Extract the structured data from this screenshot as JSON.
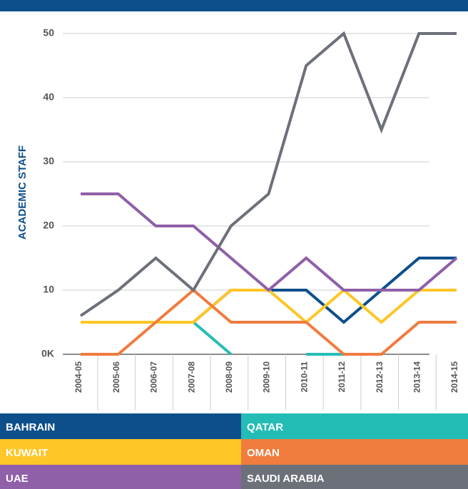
{
  "chart_data": {
    "type": "line",
    "y_label": "ACADEMIC STAFF",
    "categories": [
      "2004-05",
      "2005-06",
      "2006-07",
      "2007-08",
      "2008-09",
      "2009-10",
      "2010-11",
      "2011-12",
      "2012-13",
      "2013-14",
      "2014-15"
    ],
    "series": [
      {
        "name": "BAHRAIN",
        "color": "#0d4f8b",
        "values": [
          5,
          5,
          5,
          5,
          10,
          10,
          10,
          5,
          10,
          15,
          15
        ]
      },
      {
        "name": "QATAR",
        "color": "#24bdb6",
        "values": [
          null,
          null,
          null,
          5,
          0,
          null,
          0,
          0,
          null,
          null,
          null
        ]
      },
      {
        "name": "KUWAIT",
        "color": "#fec627",
        "values": [
          5,
          5,
          5,
          5,
          10,
          10,
          5,
          10,
          5,
          10,
          10
        ]
      },
      {
        "name": "OMAN",
        "color": "#f07c3e",
        "values": [
          0,
          0,
          5,
          10,
          5,
          5,
          5,
          0,
          0,
          5,
          5
        ]
      },
      {
        "name": "UAE",
        "color": "#8f5fa8",
        "values": [
          25,
          25,
          20,
          20,
          15,
          10,
          15,
          10,
          10,
          10,
          15
        ]
      },
      {
        "name": "SAUDI ARABIA",
        "color": "#6c7079",
        "values": [
          6,
          10,
          15,
          10,
          20,
          25,
          45,
          50,
          35,
          50,
          50
        ]
      }
    ],
    "ylim": [
      0,
      50
    ],
    "yticks": [
      {
        "value": 0,
        "label": "0K"
      },
      10,
      20,
      30,
      40,
      50
    ],
    "grid": true
  }
}
